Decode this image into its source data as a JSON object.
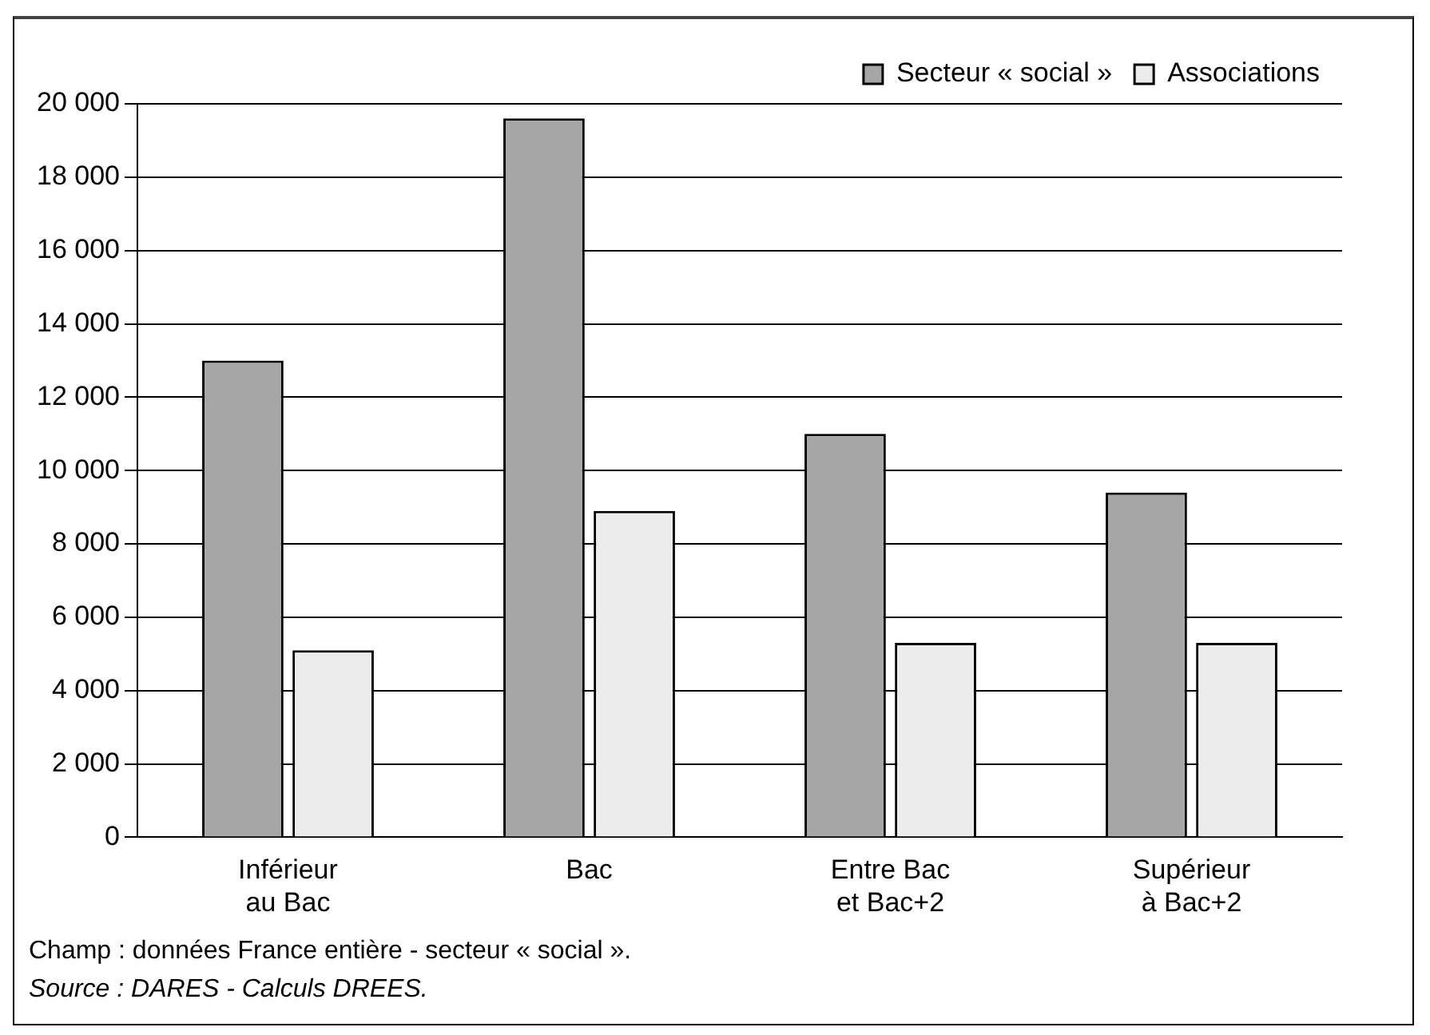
{
  "chart_data": {
    "type": "bar",
    "categories": [
      "Inférieur\nau Bac",
      "Bac",
      "Entre Bac\net Bac+2",
      "Supérieur\nà Bac+2"
    ],
    "series": [
      {
        "name": "Secteur « social »",
        "color": "#a6a6a6",
        "values": [
          13000,
          19600,
          11000,
          9400
        ]
      },
      {
        "name": "Associations",
        "color": "#ececec",
        "values": [
          5100,
          8900,
          5300,
          5300
        ]
      }
    ],
    "ylim": [
      0,
      20000
    ],
    "yticks": [
      {
        "value": 0,
        "label": "0"
      },
      {
        "value": 2000,
        "label": "2 000"
      },
      {
        "value": 4000,
        "label": "4 000"
      },
      {
        "value": 6000,
        "label": "6 000"
      },
      {
        "value": 8000,
        "label": "8 000"
      },
      {
        "value": 10000,
        "label": "10 000"
      },
      {
        "value": 12000,
        "label": "12 000"
      },
      {
        "value": 14000,
        "label": "14 000"
      },
      {
        "value": 16000,
        "label": "16 000"
      },
      {
        "value": 18000,
        "label": "18 000"
      },
      {
        "value": 20000,
        "label": "20 000"
      }
    ],
    "grid": "y",
    "legend": "top right",
    "annotations": [
      "Champ : données France entière - secteur « social ».",
      "Source : DARES - Calculs DREES."
    ]
  }
}
